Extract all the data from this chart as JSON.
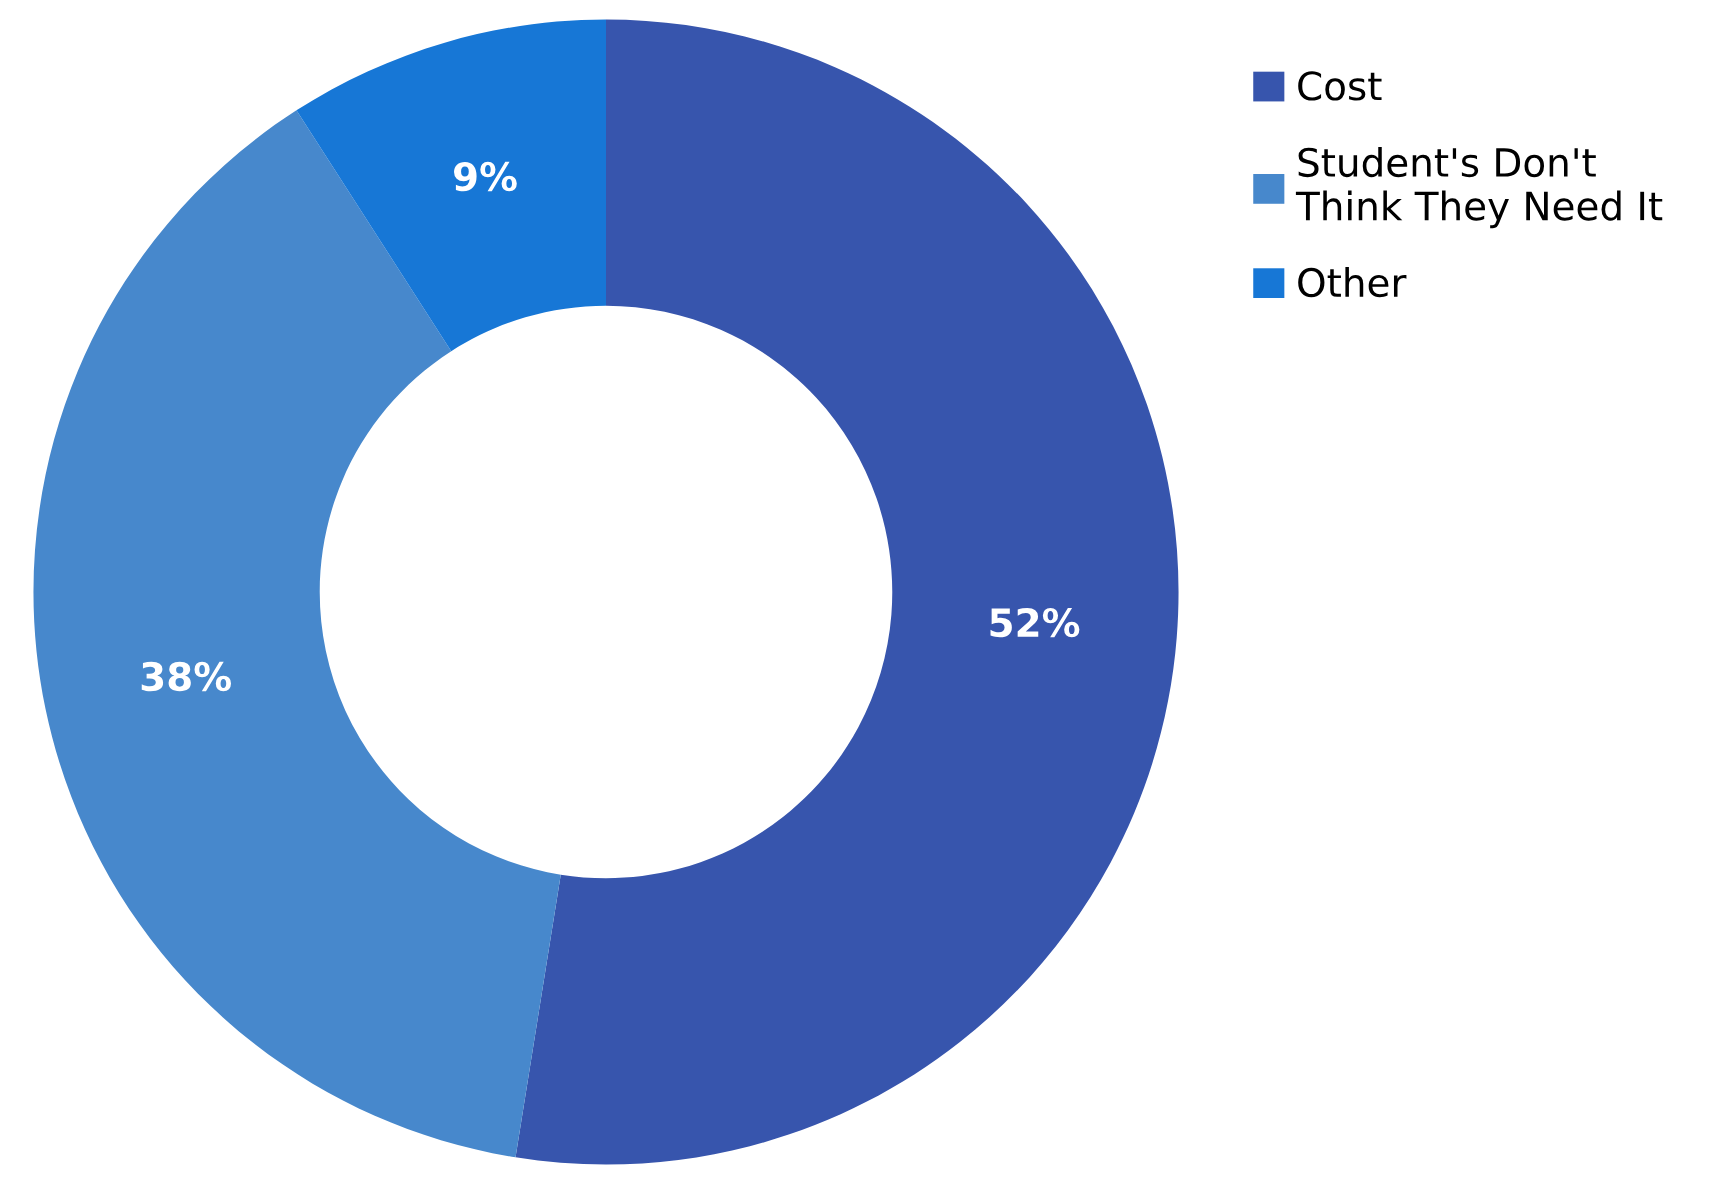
{
  "chart_data": {
    "type": "donut",
    "categories": [
      "Cost",
      "Student's Don't\nThink They Need It",
      "Other"
    ],
    "values": [
      52,
      38,
      9
    ],
    "colors": [
      "#3755ad",
      "#4788cc",
      "#1777d6"
    ],
    "value_labels": [
      "52%",
      "38%",
      "9%"
    ],
    "legend": "top right"
  }
}
